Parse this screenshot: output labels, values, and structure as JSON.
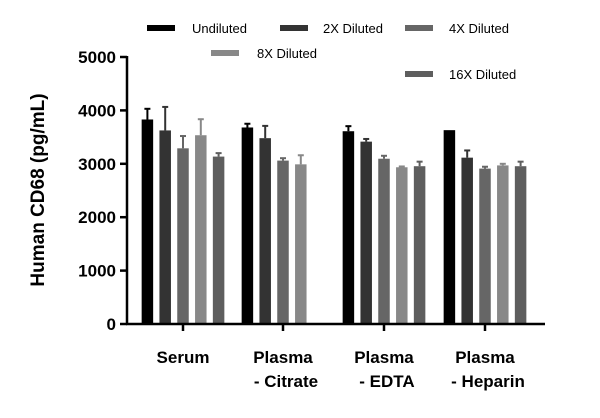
{
  "chart_data": {
    "type": "bar",
    "title": "",
    "xlabel": "",
    "ylabel": "Human CD68 (pg/mL)",
    "ylim": [
      0,
      5000
    ],
    "yticks": [
      "0",
      "1000",
      "2000",
      "3000",
      "4000",
      "5000"
    ],
    "grid": false,
    "legend_placement": "top",
    "categories": [
      [
        "Serum"
      ],
      [
        "Plasma",
        "- Citrate"
      ],
      [
        "Plasma",
        "- EDTA"
      ],
      [
        "Plasma",
        "- Heparin"
      ]
    ],
    "series": [
      {
        "name": "Undiluted",
        "color": "#000000",
        "values": [
          3830,
          3680,
          3610,
          3630
        ],
        "err": [
          200,
          70,
          95,
          0
        ]
      },
      {
        "name": "2X Diluted",
        "color": "#333333",
        "values": [
          3625,
          3480,
          3415,
          3115
        ],
        "err": [
          440,
          230,
          50,
          135
        ]
      },
      {
        "name": "4X Diluted",
        "color": "#666666",
        "values": [
          3290,
          3060,
          3095,
          2910
        ],
        "err": [
          230,
          45,
          55,
          35
        ]
      },
      {
        "name": "8X Diluted",
        "color": "#888888",
        "values": [
          3535,
          2990,
          2935,
          2970
        ],
        "err": [
          300,
          170,
          15,
          30
        ]
      },
      {
        "name": "16X Diluted",
        "color": "#5e5e5e",
        "values": [
          3135,
          null,
          2955,
          2955
        ],
        "err": [
          65,
          null,
          85,
          85
        ]
      }
    ]
  }
}
